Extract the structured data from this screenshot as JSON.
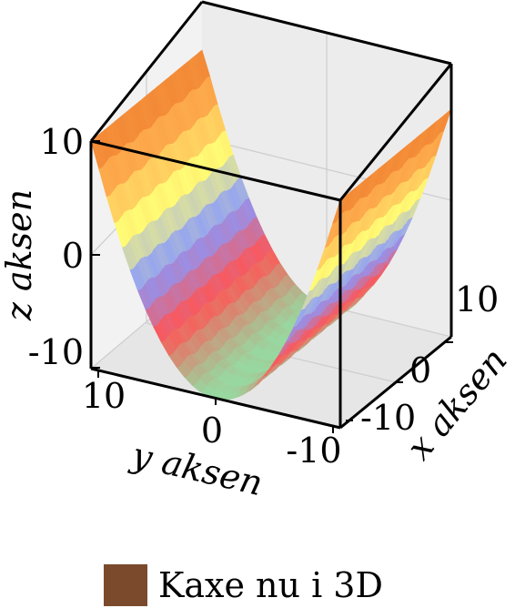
{
  "chart_data": {
    "type": "surface",
    "title": "",
    "xlabel": "x aksen",
    "ylabel": "y aksen",
    "zlabel": "z aksen",
    "x_ticks": [
      "-10",
      "0",
      "10"
    ],
    "y_ticks": [
      "10",
      "0",
      "-10"
    ],
    "z_ticks": [
      "10",
      "0",
      "-10"
    ],
    "xlim": [
      -12,
      12
    ],
    "ylim": [
      -12,
      12
    ],
    "zlim": [
      -12,
      15
    ],
    "grid": true,
    "legend_position": "bottom",
    "legend": [
      {
        "label": "Kaxe nu i 3D",
        "color": "#7b4a2d"
      }
    ],
    "surface": {
      "shape": "trough along x, parabolic in y, two ridges at the y boundaries",
      "z_min_approx": -12,
      "z_max_approx": 15,
      "colorscale": [
        "#98d8a0",
        "#ff5555",
        "#8899ff",
        "#ffff77",
        "#ffb050",
        "#f08030"
      ]
    }
  }
}
